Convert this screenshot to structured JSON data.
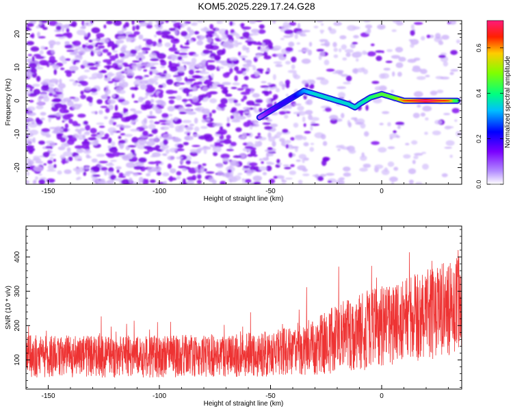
{
  "title": "KOM5.2025.229.17.24.G28",
  "chart_data": [
    {
      "type": "heatmap",
      "title": "KOM5.2025.229.17.24.G28",
      "xlabel": "Height of straight line (km)",
      "ylabel": "Frequency (Hz)",
      "xlim": [
        -160,
        36
      ],
      "ylim": [
        -25,
        24
      ],
      "xticks": [
        -150,
        -100,
        -50,
        0
      ],
      "yticks": [
        -20,
        -10,
        0,
        10,
        20
      ],
      "xtick_labels": [
        "-150",
        "-100",
        "-50",
        "0"
      ],
      "ytick_labels": [
        "-20",
        "-10",
        "0",
        "10",
        "20"
      ],
      "colorbar": {
        "label": "Normalized spectral amplitude",
        "range": [
          0.0,
          0.72
        ],
        "ticks": [
          0.0,
          0.2,
          0.4,
          0.6
        ],
        "tick_labels": [
          "0.0",
          "0.2",
          "0.4",
          "0.6"
        ],
        "colors": [
          "#ffffff",
          "#7a00ff",
          "#0000ff",
          "#00e5ff",
          "#00ff40",
          "#c8ff00",
          "#ff0000",
          "#ff1a7a"
        ]
      },
      "signal_track": {
        "description": "curved narrow-band signal trace",
        "x": [
          -55,
          -50,
          -45,
          -40,
          -35,
          -30,
          -25,
          -20,
          -15,
          -12,
          -10,
          -5,
          0,
          5,
          10,
          15,
          20,
          25,
          30,
          34
        ],
        "y": [
          -5,
          -3,
          -1,
          1,
          3,
          2,
          1,
          0,
          -1,
          -2,
          -1,
          1,
          2,
          1,
          0,
          0,
          0,
          0,
          0,
          0
        ],
        "amplitude": [
          0.1,
          0.15,
          0.2,
          0.2,
          0.3,
          0.35,
          0.35,
          0.35,
          0.35,
          0.35,
          0.35,
          0.4,
          0.45,
          0.45,
          0.55,
          0.6,
          0.65,
          0.6,
          0.55,
          0.4
        ]
      }
    },
    {
      "type": "line",
      "xlabel": "Height of straight line (km)",
      "ylabel": "SNR (10 * v/v)",
      "xlim": [
        -160,
        36
      ],
      "ylim": [
        15,
        490
      ],
      "xticks": [
        -150,
        -100,
        -50,
        0
      ],
      "yticks": [
        100,
        200,
        300,
        400
      ],
      "xtick_labels": [
        "-150",
        "-100",
        "-50",
        "0"
      ],
      "ytick_labels": [
        "100",
        "200",
        "300",
        "400"
      ],
      "color": "#ee3333",
      "series": [
        {
          "name": "SNR",
          "envelope_x": [
            -160,
            -140,
            -120,
            -100,
            -80,
            -60,
            -40,
            -30,
            -20,
            -10,
            0,
            10,
            20,
            30,
            36
          ],
          "envelope_mean": [
            110,
            110,
            110,
            110,
            112,
            115,
            125,
            140,
            160,
            180,
            200,
            215,
            230,
            250,
            265
          ],
          "envelope_spread": [
            65,
            65,
            65,
            65,
            65,
            68,
            75,
            90,
            110,
            120,
            125,
            130,
            140,
            150,
            155
          ]
        }
      ]
    }
  ]
}
